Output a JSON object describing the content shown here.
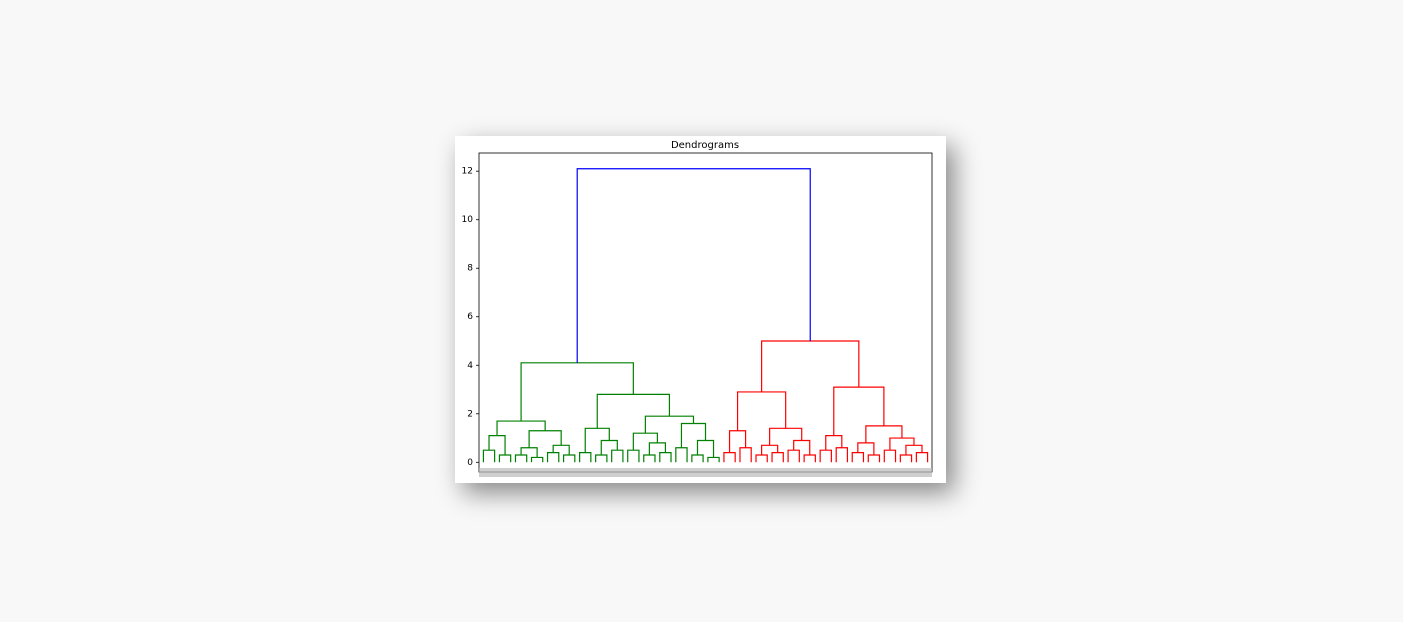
{
  "chart_data": {
    "type": "dendrogram",
    "title": "Dendrograms",
    "ylim": [
      -0.4,
      12.75
    ],
    "yticks": [
      0,
      2,
      4,
      6,
      8,
      10,
      12
    ],
    "tree": {
      "h": 12.1,
      "color": "#0000ff",
      "children": [
        {
          "h": 4.1,
          "color": "#008000",
          "children": [
            {
              "h": 1.7,
              "children": [
                {
                  "h": 1.1,
                  "children": [
                    {
                      "h": 0.5
                    },
                    {
                      "h": 0.3
                    }
                  ]
                },
                {
                  "h": 1.3,
                  "children": [
                    {
                      "h": 0.6,
                      "children": [
                        {
                          "h": 0.3
                        },
                        {
                          "h": 0.2
                        }
                      ]
                    },
                    {
                      "h": 0.7,
                      "children": [
                        {
                          "h": 0.4
                        },
                        {
                          "h": 0.3
                        }
                      ]
                    }
                  ]
                }
              ]
            },
            {
              "h": 2.8,
              "children": [
                {
                  "h": 1.4,
                  "children": [
                    {
                      "h": 0.4
                    },
                    {
                      "h": 0.9,
                      "children": [
                        {
                          "h": 0.3
                        },
                        {
                          "h": 0.5
                        }
                      ]
                    }
                  ]
                },
                {
                  "h": 1.9,
                  "children": [
                    {
                      "h": 1.2,
                      "children": [
                        {
                          "h": 0.5
                        },
                        {
                          "h": 0.8,
                          "children": [
                            {
                              "h": 0.3
                            },
                            {
                              "h": 0.4
                            }
                          ]
                        }
                      ]
                    },
                    {
                      "h": 1.6,
                      "children": [
                        {
                          "h": 0.6
                        },
                        {
                          "h": 0.9,
                          "children": [
                            {
                              "h": 0.3
                            },
                            {
                              "h": 0.2
                            }
                          ]
                        }
                      ]
                    }
                  ]
                }
              ]
            }
          ]
        },
        {
          "h": 5.0,
          "color": "#ff0000",
          "children": [
            {
              "h": 2.9,
              "children": [
                {
                  "h": 1.3,
                  "children": [
                    {
                      "h": 0.4
                    },
                    {
                      "h": 0.6
                    }
                  ]
                },
                {
                  "h": 1.4,
                  "children": [
                    {
                      "h": 0.7,
                      "children": [
                        {
                          "h": 0.3
                        },
                        {
                          "h": 0.4
                        }
                      ]
                    },
                    {
                      "h": 0.9,
                      "children": [
                        {
                          "h": 0.5
                        },
                        {
                          "h": 0.3
                        }
                      ]
                    }
                  ]
                }
              ]
            },
            {
              "h": 3.1,
              "children": [
                {
                  "h": 1.1,
                  "children": [
                    {
                      "h": 0.5
                    },
                    {
                      "h": 0.6
                    }
                  ]
                },
                {
                  "h": 1.5,
                  "children": [
                    {
                      "h": 0.8,
                      "children": [
                        {
                          "h": 0.4
                        },
                        {
                          "h": 0.3
                        }
                      ]
                    },
                    {
                      "h": 1.0,
                      "children": [
                        {
                          "h": 0.5
                        },
                        {
                          "h": 0.7,
                          "children": [
                            {
                              "h": 0.3
                            },
                            {
                              "h": 0.4
                            }
                          ]
                        }
                      ]
                    }
                  ]
                }
              ]
            }
          ]
        }
      ]
    }
  }
}
